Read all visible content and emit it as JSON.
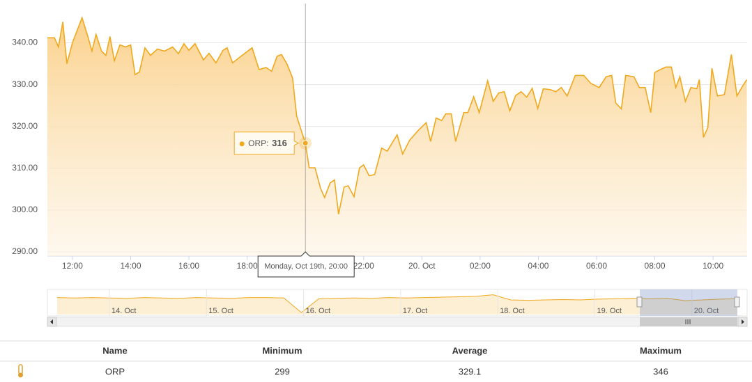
{
  "chart_data": {
    "type": "area",
    "series": [
      {
        "name": "ORP",
        "color": "#f0a81c",
        "x": [
          11.14,
          11.38,
          11.52,
          11.67,
          11.81,
          12,
          12.33,
          12.53,
          12.67,
          12.81,
          13,
          13.15,
          13.29,
          13.44,
          13.63,
          13.82,
          14,
          14.15,
          14.3,
          14.49,
          14.68,
          14.92,
          15.16,
          15.44,
          15.64,
          15.83,
          16,
          16.21,
          16.5,
          16.69,
          16.93,
          17.17,
          17.31,
          17.5,
          17.79,
          18.17,
          18.41,
          18.65,
          18.84,
          19.03,
          19.18,
          19.37,
          19.56,
          19.7,
          19.85,
          20,
          20.13,
          20.33,
          20.52,
          20.66,
          20.85,
          21,
          21.14,
          21.33,
          21.47,
          21.67,
          21.86,
          22,
          22.19,
          22.38,
          22.62,
          22.81,
          23.15,
          23.34,
          23.58,
          23.87,
          24.15,
          24.3,
          24.49,
          24.68,
          24.82,
          25.01,
          25.16,
          25.44,
          25.58,
          25.78,
          25.97,
          26.26,
          26.45,
          26.64,
          26.83,
          27.02,
          27.22,
          27.41,
          27.6,
          27.79,
          27.98,
          28.17,
          28.41,
          28.6,
          28.79,
          28.99,
          29.27,
          29.56,
          29.8,
          30.09,
          30.33,
          30.52,
          30.66,
          30.85,
          31,
          31.28,
          31.47,
          31.67,
          31.86,
          32,
          32.19,
          32.38,
          32.57,
          32.72,
          32.86,
          33.05,
          33.24,
          33.44,
          33.53,
          33.67,
          33.82,
          33.96,
          34.15,
          34.39,
          34.63,
          34.82,
          35.01,
          35.16
        ],
        "values": [
          341.2,
          341.2,
          339,
          345,
          335,
          340,
          346,
          341.5,
          338,
          342,
          338,
          337,
          341.5,
          335.7,
          339.5,
          339,
          339.5,
          332.4,
          333,
          338.8,
          337,
          338.5,
          338,
          339,
          337.4,
          339.8,
          338.2,
          339.8,
          335.9,
          337.5,
          335.2,
          338.2,
          338.8,
          335.2,
          336.8,
          338.8,
          333.6,
          334.1,
          333.2,
          336.8,
          337.2,
          334.9,
          331.6,
          322.5,
          319.2,
          316,
          310.1,
          310.1,
          305.2,
          303,
          306.5,
          307.2,
          299,
          305.5,
          305.8,
          303.2,
          310.1,
          310.8,
          308.2,
          308.5,
          314.8,
          314.1,
          318,
          313.4,
          316.7,
          319,
          320.9,
          316.4,
          322,
          321.4,
          323,
          323,
          316.4,
          323.3,
          323.3,
          327.1,
          323.3,
          330.9,
          326,
          328,
          328.3,
          323.7,
          327.4,
          328.3,
          327,
          329.1,
          324.3,
          329,
          328.8,
          328.3,
          329.3,
          327.3,
          332.2,
          332.2,
          330.3,
          329.3,
          331.9,
          332.2,
          325.6,
          324.2,
          332.2,
          331.9,
          329.3,
          329.3,
          323.3,
          332.9,
          333.6,
          334.2,
          334.2,
          329.3,
          331.9,
          326,
          329.3,
          329,
          331.2,
          317.4,
          319.7,
          333.9,
          327.3,
          327.6,
          337.2,
          327.3,
          329.6,
          331.2
        ]
      }
    ],
    "xlim": [
      11.14,
      35.17
    ],
    "xticks": [
      {
        "value": 12,
        "label": "12:00"
      },
      {
        "value": 14,
        "label": "14:00"
      },
      {
        "value": 16,
        "label": "16:00"
      },
      {
        "value": 18,
        "label": "18:00"
      },
      {
        "value": 22,
        "label": "22:00"
      },
      {
        "value": 24,
        "label": "20. Oct"
      },
      {
        "value": 26,
        "label": "02:00"
      },
      {
        "value": 28,
        "label": "04:00"
      },
      {
        "value": 30,
        "label": "06:00"
      },
      {
        "value": 32,
        "label": "08:00"
      },
      {
        "value": 34,
        "label": "10:00"
      }
    ],
    "ylim": [
      289,
      349.4
    ],
    "yticks": [
      {
        "value": 290,
        "label": "290.00"
      },
      {
        "value": 300,
        "label": "300.00"
      },
      {
        "value": 310,
        "label": "310.00"
      },
      {
        "value": 320,
        "label": "320.00"
      },
      {
        "value": 330,
        "label": "330.00"
      },
      {
        "value": 340,
        "label": "340.00"
      }
    ],
    "grid": true,
    "tooltip": {
      "x": 20,
      "label": "ORP:",
      "value": 316,
      "date": "Monday, Oct 19th, 20:00"
    },
    "navigator": {
      "labels": [
        "14. Oct",
        "15. Oct",
        "16. Oct",
        "17. Oct",
        "18. Oct",
        "19. Oct",
        "20. Oct"
      ],
      "ylim": [
        290,
        350
      ],
      "values": [
        333,
        332,
        333,
        332,
        331,
        333,
        332,
        331,
        333,
        332,
        331,
        333,
        333,
        332,
        295,
        330,
        331,
        332,
        331,
        333,
        332,
        333,
        334,
        335,
        336,
        340,
        327,
        326,
        327,
        328,
        327,
        329,
        330,
        331,
        330,
        331,
        325,
        327,
        329,
        330
      ]
    }
  },
  "table": {
    "headers": [
      "Name",
      "Minimum",
      "Average",
      "Maximum"
    ],
    "rows": [
      [
        "ORP",
        "299",
        "329.1",
        "346"
      ]
    ]
  }
}
